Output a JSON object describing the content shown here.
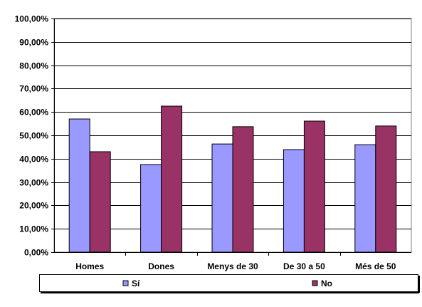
{
  "chart_data": {
    "type": "bar",
    "categories": [
      "Homes",
      "Dones",
      "Menys de 30",
      "De 30 a 50",
      "Més de 50"
    ],
    "series": [
      {
        "name": "Sí",
        "values": [
          57.0,
          37.5,
          46.3,
          43.9,
          46.0
        ],
        "color": "#9999ff"
      },
      {
        "name": "No",
        "values": [
          43.0,
          62.5,
          53.7,
          56.1,
          54.0
        ],
        "color": "#993366"
      }
    ],
    "ylim": [
      0,
      100
    ],
    "yticks": [
      "0,00%",
      "10,00%",
      "20,00%",
      "30,00%",
      "40,00%",
      "50,00%",
      "60,00%",
      "70,00%",
      "80,00%",
      "90,00%",
      "100,00%"
    ],
    "grid": true,
    "legend_position": "bottom"
  }
}
